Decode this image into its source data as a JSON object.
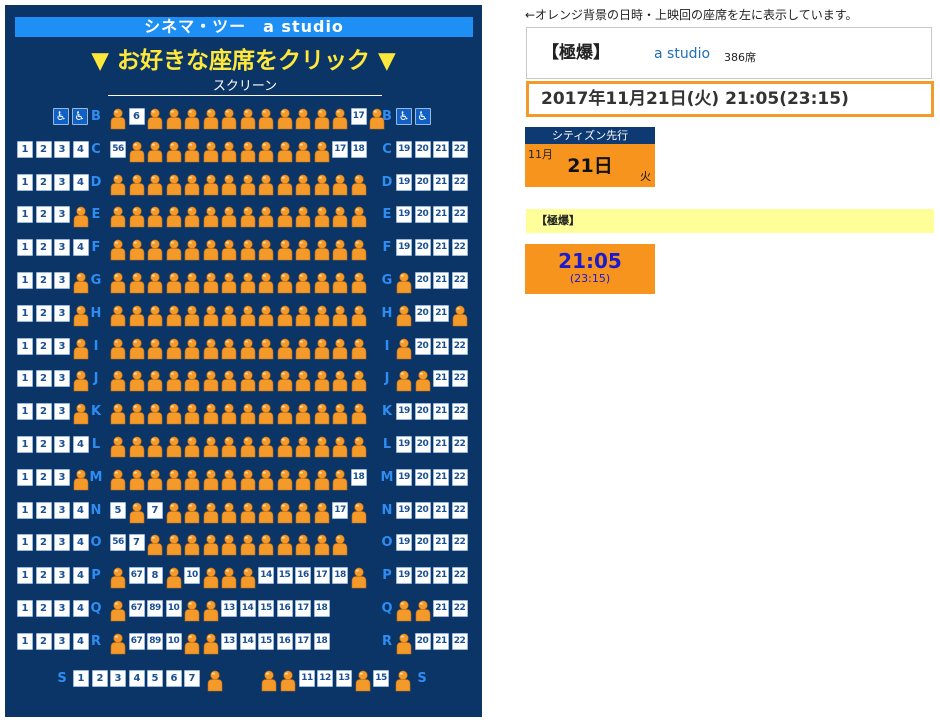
{
  "seatmap": {
    "title": "シネマ・ツー　a studio",
    "prompt": "▼ お好きな座席をクリック ▼",
    "screen_label": "スクリーン",
    "wheelchair_symbol": "♿",
    "wheelchair_icon": "wheelchair-icon",
    "taken_icon": "person-icon",
    "colors": {
      "panel": "#0b3566",
      "title_bar": "#1e90f5",
      "prompt": "#ffe83a",
      "row_label": "#2f8cf2",
      "seat_number": "#1a4f93",
      "taken_seat": "#f39a2a"
    },
    "rows": [
      {
        "label": "B",
        "left": [
          "W",
          "W"
        ],
        "center": "X6XXXXXXXXXXX17X",
        "right": [
          "W",
          "W"
        ]
      },
      {
        "label": "C",
        "left": [
          "1",
          "2",
          "3",
          "4"
        ],
        "center": "56XXXXXXXXXXX1718",
        "right": [
          "19",
          "20",
          "21",
          "22"
        ]
      },
      {
        "label": "D",
        "left": [
          "1",
          "2",
          "3",
          "4"
        ],
        "center": "XXXXXXXXXXXXXX",
        "right": [
          "19",
          "20",
          "21",
          "22"
        ]
      },
      {
        "label": "E",
        "left": [
          "1",
          "2",
          "3",
          "X"
        ],
        "center": "XXXXXXXXXXXXXX",
        "right": [
          "19",
          "20",
          "21",
          "22"
        ]
      },
      {
        "label": "F",
        "left": [
          "1",
          "2",
          "3",
          "4"
        ],
        "center": "XXXXXXXXXXXXXX",
        "right": [
          "19",
          "20",
          "21",
          "22"
        ]
      },
      {
        "label": "G",
        "left": [
          "1",
          "2",
          "3",
          "X"
        ],
        "center": "XXXXXXXXXXXXXX",
        "right": [
          "X",
          "20",
          "21",
          "22"
        ]
      },
      {
        "label": "H",
        "left": [
          "1",
          "2",
          "3",
          "X"
        ],
        "center": "XXXXXXXXXXXXXX",
        "right": [
          "X",
          "20",
          "21",
          "X"
        ]
      },
      {
        "label": "I",
        "left": [
          "1",
          "2",
          "3",
          "X"
        ],
        "center": "XXXXXXXXXXXXXX",
        "right": [
          "X",
          "20",
          "21",
          "22"
        ]
      },
      {
        "label": "J",
        "left": [
          "1",
          "2",
          "3",
          "X"
        ],
        "center": "XXXXXXXXXXXXXX",
        "right": [
          "X",
          "X",
          "21",
          "22"
        ]
      },
      {
        "label": "K",
        "left": [
          "1",
          "2",
          "3",
          "X"
        ],
        "center": "XXXXXXXXXXXXXX",
        "right": [
          "19",
          "20",
          "21",
          "22"
        ]
      },
      {
        "label": "L",
        "left": [
          "1",
          "2",
          "3",
          "4"
        ],
        "center": "XXXXXXXXXXXXXX",
        "right": [
          "19",
          "20",
          "21",
          "22"
        ]
      },
      {
        "label": "M",
        "left": [
          "1",
          "2",
          "3",
          "X"
        ],
        "center": "XXXXXXXXXXXXX18",
        "right": [
          "19",
          "20",
          "21",
          "22"
        ]
      },
      {
        "label": "N",
        "left": [
          "1",
          "2",
          "3",
          "4"
        ],
        "center": "5X7XXXXXXXXX17X",
        "right": [
          "19",
          "20",
          "21",
          "22"
        ]
      },
      {
        "label": "O",
        "left": [
          "1",
          "2",
          "3",
          "4"
        ],
        "center": "567XXXXXXXXXXX",
        "right": [
          "19",
          "20",
          "21",
          "22"
        ]
      },
      {
        "label": "P",
        "left": [
          "1",
          "2",
          "3",
          "4"
        ],
        "center": "X678X10XXX1415161718X",
        "right": [
          "19",
          "20",
          "21",
          "22"
        ]
      },
      {
        "label": "Q",
        "left": [
          "1",
          "2",
          "3",
          "4"
        ],
        "center": "X678910XX131415161718",
        "right": [
          "X",
          "X",
          "21",
          "22"
        ]
      },
      {
        "label": "R",
        "left": [
          "1",
          "2",
          "3",
          "4"
        ],
        "center": "X678910XX131415161718",
        "right": [
          "X",
          "20",
          "21",
          "22"
        ]
      }
    ],
    "bottom_row": {
      "label": "S",
      "seats": [
        "1",
        "2",
        "3",
        "4",
        "5",
        "6",
        "7",
        "X",
        "X",
        "X",
        "11",
        "12",
        "13",
        "X",
        "15",
        "X"
      ]
    }
  },
  "info": {
    "note": "←オレンジ背景の日時・上映回の座席を左に表示しています。",
    "movie_title": "【極爆】",
    "theater_name": "a studio",
    "seat_count": "386席",
    "datetime": "2017年11月21日(火) 21:05(23:15)",
    "citizen_label": "シティズン先行",
    "citizen_month": "11月",
    "citizen_day": "21日",
    "citizen_weekday": "火",
    "film_label": "【極爆】",
    "showtime_start": "21:05",
    "showtime_end": "(23:15)",
    "colors": {
      "accent": "#f7941e",
      "film_bar": "#ffff99",
      "showtime_text": "#1a1ad0",
      "citizen_head": "#0e3a73"
    }
  }
}
